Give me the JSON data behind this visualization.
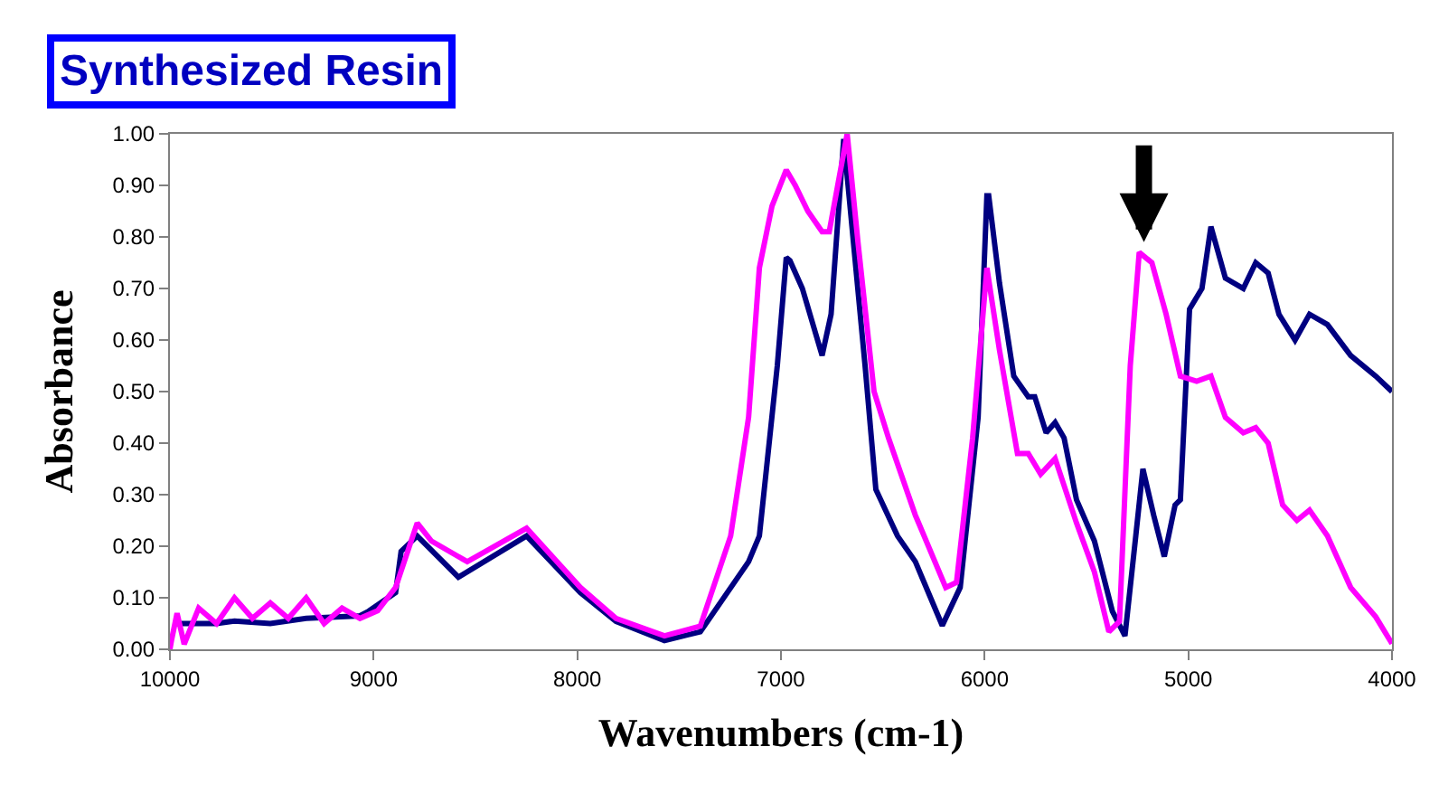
{
  "chart_data": {
    "type": "line",
    "title": "Synthesized Resin",
    "xlabel": "Wavenumbers (cm-1)",
    "ylabel": "Absorbance",
    "xlim": [
      10000,
      4000
    ],
    "xticks": [
      10000,
      9000,
      8000,
      7000,
      6000,
      5000,
      4000
    ],
    "ylim": [
      0,
      1.0
    ],
    "yticks": [
      {
        "value": 0,
        "label": "0.00"
      },
      {
        "value": 0.1,
        "label": "0.10"
      },
      {
        "value": 0.2,
        "label": "0.20"
      },
      {
        "value": 0.3,
        "label": "0.30"
      },
      {
        "value": 0.4,
        "label": "0.40"
      },
      {
        "value": 0.5,
        "label": "0.50"
      },
      {
        "value": 0.6,
        "label": "0.60"
      },
      {
        "value": 0.7,
        "label": "0.70"
      },
      {
        "value": 0.8,
        "label": "0.80"
      },
      {
        "value": 0.9,
        "label": "0.90"
      },
      {
        "value": 1.0,
        "label": "1.00"
      }
    ],
    "marker": "none",
    "line_style": "solid",
    "series": [
      {
        "color": "#000080",
        "x": [
          9982,
          9771,
          9683,
          9507,
          9331,
          9067,
          9024,
          8892,
          8865,
          8786,
          8584,
          8249,
          7985,
          7810,
          7572,
          7396,
          7159,
          7106,
          7018,
          6974,
          6956,
          6895,
          6798,
          6754,
          6692,
          6587,
          6534,
          6428,
          6340,
          6208,
          6120,
          6032,
          5989,
          5980,
          5927,
          5857,
          5786,
          5754,
          5698,
          5654,
          5610,
          5549,
          5461,
          5373,
          5311,
          5258,
          5223,
          5170,
          5118,
          5065,
          5039,
          4994,
          4933,
          4889,
          4818,
          4730,
          4669,
          4608,
          4555,
          4476,
          4405,
          4317,
          4203,
          4080,
          4000
        ],
        "values": [
          0.05,
          0.05,
          0.055,
          0.05,
          0.06,
          0.065,
          0.074,
          0.11,
          0.19,
          0.22,
          0.14,
          0.22,
          0.11,
          0.054,
          0.017,
          0.034,
          0.17,
          0.22,
          0.55,
          0.76,
          0.754,
          0.7,
          0.57,
          0.65,
          0.99,
          0.55,
          0.31,
          0.22,
          0.17,
          0.046,
          0.12,
          0.45,
          0.88,
          0.88,
          0.71,
          0.53,
          0.49,
          0.49,
          0.42,
          0.44,
          0.41,
          0.29,
          0.21,
          0.074,
          0.026,
          0.22,
          0.35,
          0.26,
          0.18,
          0.28,
          0.29,
          0.66,
          0.7,
          0.82,
          0.72,
          0.7,
          0.75,
          0.73,
          0.65,
          0.6,
          0.65,
          0.63,
          0.57,
          0.53,
          0.5
        ]
      },
      {
        "color": "#ff00ff",
        "x": [
          10000,
          9991,
          9965,
          9930,
          9859,
          9771,
          9683,
          9595,
          9507,
          9419,
          9331,
          9243,
          9155,
          9067,
          8980,
          8892,
          8786,
          8716,
          8540,
          8249,
          7985,
          7810,
          7572,
          7396,
          7247,
          7159,
          7106,
          7044,
          6974,
          6930,
          6868,
          6798,
          6763,
          6675,
          6622,
          6543,
          6472,
          6340,
          6191,
          6138,
          6059,
          5989,
          5927,
          5839,
          5786,
          5725,
          5654,
          5549,
          5461,
          5390,
          5338,
          5285,
          5241,
          5179,
          5109,
          5039,
          4959,
          4889,
          4818,
          4730,
          4669,
          4608,
          4537,
          4467,
          4405,
          4317,
          4203,
          4080,
          4000
        ],
        "values": [
          0.0,
          0.02,
          0.07,
          0.01,
          0.08,
          0.05,
          0.1,
          0.06,
          0.09,
          0.06,
          0.1,
          0.05,
          0.08,
          0.06,
          0.075,
          0.12,
          0.245,
          0.21,
          0.17,
          0.235,
          0.12,
          0.06,
          0.026,
          0.045,
          0.22,
          0.45,
          0.74,
          0.86,
          0.93,
          0.9,
          0.85,
          0.81,
          0.81,
          1.0,
          0.79,
          0.5,
          0.41,
          0.26,
          0.12,
          0.13,
          0.41,
          0.74,
          0.58,
          0.38,
          0.38,
          0.34,
          0.37,
          0.245,
          0.15,
          0.034,
          0.054,
          0.55,
          0.77,
          0.75,
          0.65,
          0.53,
          0.52,
          0.53,
          0.45,
          0.42,
          0.43,
          0.4,
          0.28,
          0.25,
          0.27,
          0.22,
          0.12,
          0.063,
          0.011
        ]
      }
    ]
  }
}
